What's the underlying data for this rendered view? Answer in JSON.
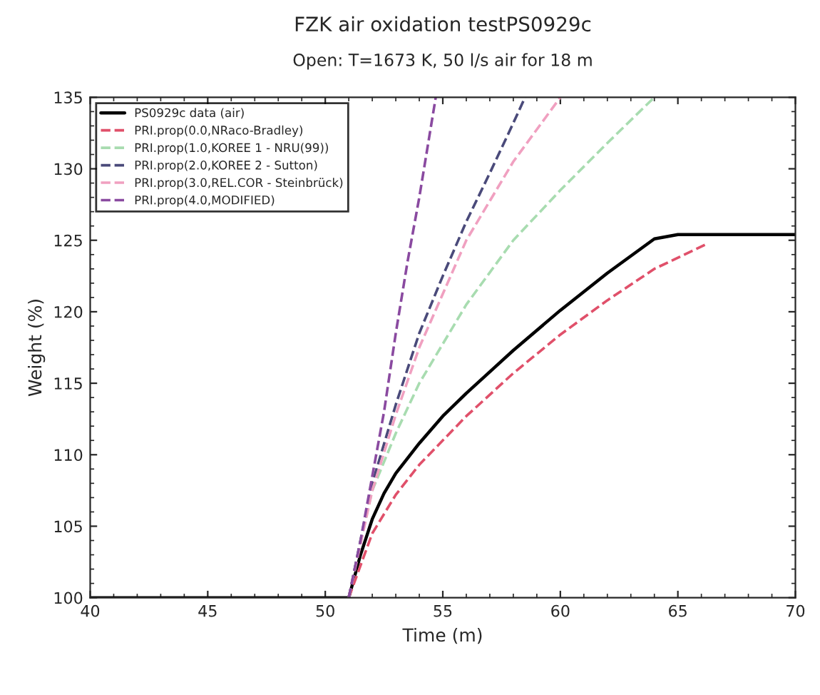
{
  "chart_data": {
    "type": "line",
    "title": "FZK air oxidation testPS0929c",
    "subtitle": "Open: T=1673 K, 50 l/s air for 18 m",
    "xlabel": "Time (m)",
    "ylabel": "Weight (%)",
    "xlim": [
      40,
      70
    ],
    "ylim": [
      100,
      135
    ],
    "xticks": [
      40,
      45,
      50,
      55,
      60,
      65,
      70
    ],
    "yticks": [
      100,
      105,
      110,
      115,
      120,
      125,
      130,
      135
    ],
    "grid": false,
    "legend": "top left",
    "series": [
      {
        "name": "PS0929c data (air)",
        "color": "#000000",
        "line_style": "solid",
        "x": [
          40,
          51,
          51.5,
          52,
          52.5,
          53,
          54,
          55,
          56,
          58,
          60,
          62,
          64,
          65,
          70
        ],
        "values": [
          100,
          100,
          103,
          105.5,
          107.3,
          108.7,
          110.8,
          112.7,
          114.3,
          117.3,
          120.1,
          122.7,
          125.1,
          125.4,
          125.4
        ]
      },
      {
        "name": "PRI.prop(0.0,NRaco-Bradley)",
        "color": "#e0506a",
        "line_style": "dashed",
        "x": [
          51,
          52,
          53,
          54,
          56,
          58,
          60,
          62,
          64,
          66.3
        ],
        "values": [
          100,
          104.5,
          107.2,
          109.3,
          112.7,
          115.7,
          118.4,
          120.8,
          123,
          124.8
        ]
      },
      {
        "name": "PRI.prop(1.0,KOREE 1 - NRU(99))",
        "color": "#a8dcb0",
        "line_style": "dashed",
        "x": [
          51,
          51.5,
          52,
          53,
          54,
          56,
          58,
          60,
          62,
          64
        ],
        "values": [
          100,
          104,
          107.5,
          111.5,
          115,
          120.5,
          125,
          128.5,
          131.8,
          135
        ]
      },
      {
        "name": "PRI.prop(2.0,KOREE 2 - Sutton)",
        "color": "#4a4a7a",
        "line_style": "dashed",
        "x": [
          51,
          51.5,
          52,
          53,
          54,
          55,
          56,
          57,
          58,
          58.5
        ],
        "values": [
          100,
          104,
          108,
          113.5,
          118.5,
          122.5,
          126.3,
          129.7,
          133.2,
          135
        ]
      },
      {
        "name": "PRI.prop(3.0,REL.COR - Steinbrück)",
        "color": "#f0a0c0",
        "line_style": "dashed",
        "x": [
          51,
          52,
          53,
          54,
          56,
          58,
          60
        ],
        "values": [
          100,
          107.5,
          112.8,
          117.5,
          125,
          130.5,
          135
        ]
      },
      {
        "name": "PRI.prop(4.0,MODIFIED)",
        "color": "#8a4aa0",
        "line_style": "dashed",
        "x": [
          51,
          51.5,
          52,
          52.5,
          53,
          53.5,
          54,
          54.7
        ],
        "values": [
          100,
          104,
          108.5,
          113,
          118.5,
          123.5,
          128,
          135
        ]
      }
    ]
  }
}
